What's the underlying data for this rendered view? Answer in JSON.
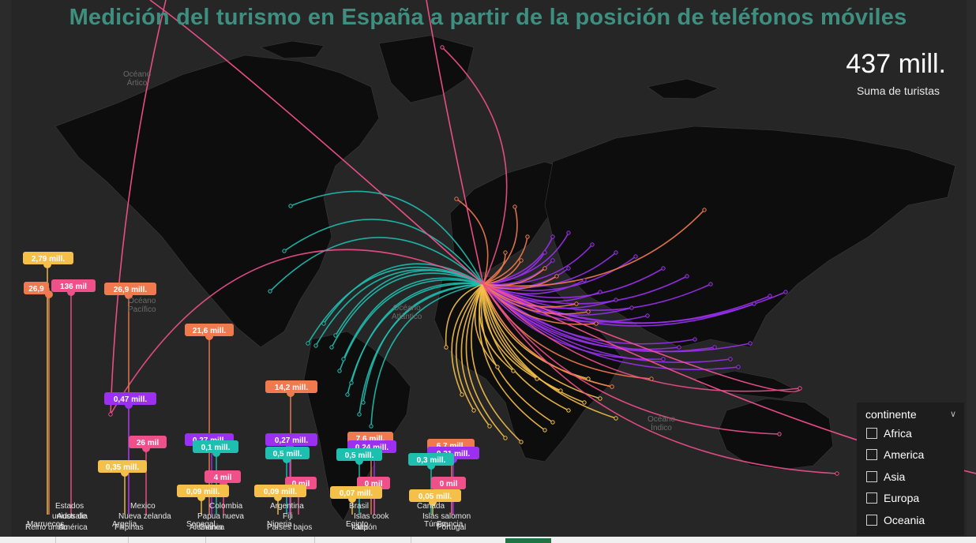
{
  "title": "Medición del turismo en España a partir de la posición de teléfonos móviles",
  "kpi": {
    "value": "437 mill.",
    "label": "Suma de turistas"
  },
  "oceans": {
    "arctic": [
      "Océano",
      "Ártico"
    ],
    "pacific": [
      "Océano",
      "Pacífico"
    ],
    "atlantic": [
      "Océano",
      "Atlántico"
    ],
    "indian": [
      "Océano",
      "Índico"
    ]
  },
  "colors": {
    "Africa": "#f5c04a",
    "America": "#1fbfb0",
    "Asia": "#9b30f0",
    "Europa": "#f07a50",
    "Oceania": "#f0508a",
    "title": "#3f8f80"
  },
  "slicer": {
    "title": "continente",
    "items": [
      "Africa",
      "America",
      "Asia",
      "Europa",
      "Oceania"
    ]
  },
  "pills": [
    {
      "text": "2,79 mill.",
      "continent": "Africa"
    },
    {
      "text": "26,9",
      "continent": "Europa"
    },
    {
      "text": "136 mil",
      "continent": "Oceania"
    },
    {
      "text": "26,9 mill.",
      "continent": "Europa"
    },
    {
      "text": "21,6 mill.",
      "continent": "Europa"
    },
    {
      "text": "0,47 mill.",
      "continent": "Asia"
    },
    {
      "text": "14,2 mill.",
      "continent": "Europa"
    },
    {
      "text": "26 mil",
      "continent": "Oceania"
    },
    {
      "text": "0,35 mill.",
      "continent": "Africa"
    },
    {
      "text": "0,27 mill.",
      "continent": "Asia"
    },
    {
      "text": "0,1 mill.",
      "continent": "America"
    },
    {
      "text": "4 mil",
      "continent": "Oceania"
    },
    {
      "text": "0,09 mill.",
      "continent": "Africa"
    },
    {
      "text": "0,27 mill.",
      "continent": "Asia"
    },
    {
      "text": "0,5 mill.",
      "continent": "America"
    },
    {
      "text": "0 mil",
      "continent": "Oceania"
    },
    {
      "text": "0,09 mill.",
      "continent": "Africa"
    },
    {
      "text": "7,6 mill.",
      "continent": "Europa"
    },
    {
      "text": "0,24 mill.",
      "continent": "Asia"
    },
    {
      "text": "0,5 mill.",
      "continent": "America"
    },
    {
      "text": "0 mil",
      "continent": "Oceania"
    },
    {
      "text": "0,07 mill.",
      "continent": "Africa"
    },
    {
      "text": "6,7 mill.",
      "continent": "Europa"
    },
    {
      "text": "0,21 mill.",
      "continent": "Asia"
    },
    {
      "text": "0,3 mill.",
      "continent": "America"
    },
    {
      "text": "0 mil",
      "continent": "Oceania"
    },
    {
      "text": "0,05 mill.",
      "continent": "Africa"
    }
  ],
  "country_labels": [
    "Estados",
    "Australia",
    "unidos de",
    "América",
    "Marruecos",
    "Reino unido",
    "Mexico",
    "Nueva zelanda",
    "Argelia",
    "Filipinas",
    "Colombia",
    "Papua nueva",
    "Guinea",
    "Senegal",
    "Alemania",
    "Argentina",
    "Fiji",
    "Nigeria",
    "Países bajos",
    "Brasil",
    "Islas cook",
    "Egipto",
    "Japón",
    "Italia",
    "Canada",
    "Islas salomon",
    "Túnez",
    "Portugal",
    "Francia"
  ]
}
